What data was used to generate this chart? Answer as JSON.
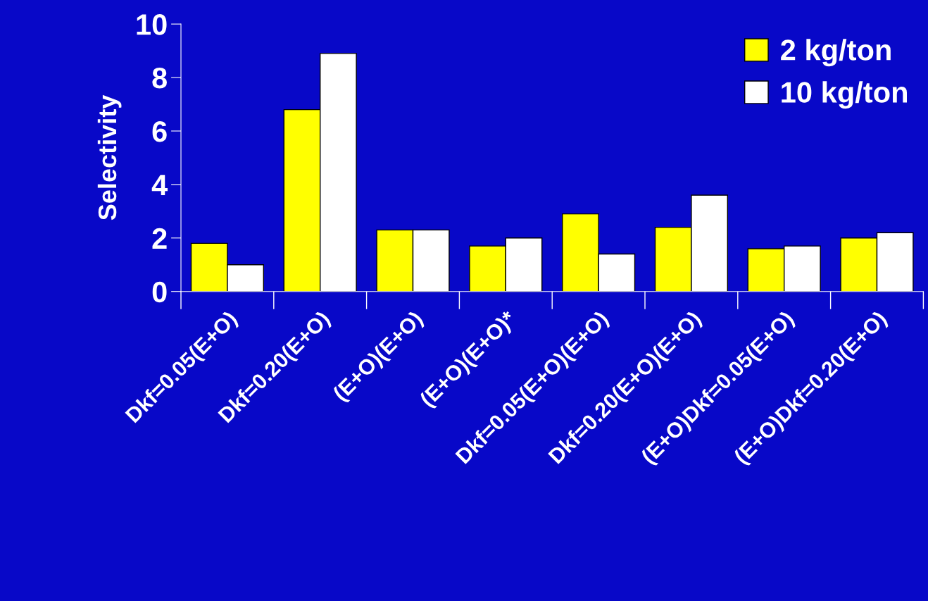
{
  "chart_data": {
    "type": "bar",
    "ylabel": "Selectivity",
    "categories": [
      "Dkf=0.05(E+O)",
      "Dkf=0.20(E+O)",
      "(E+O)(E+O)",
      "(E+O)(E+O)*",
      "Dkf=0.05(E+O)(E+O)",
      "Dkf=0.20(E+O)(E+O)",
      "(E+O)Dkf=0.05(E+O)",
      "(E+O)Dkf=0.20(E+O)"
    ],
    "series": [
      {
        "name": "2 kg/ton",
        "color": "#ffff00",
        "values": [
          1.8,
          6.8,
          2.3,
          1.7,
          2.9,
          2.4,
          1.6,
          2.0
        ]
      },
      {
        "name": "10 kg/ton",
        "color": "#ffffff",
        "values": [
          1.0,
          8.9,
          2.3,
          2.0,
          1.4,
          3.6,
          1.7,
          2.2
        ]
      }
    ],
    "ylim": [
      0,
      10
    ],
    "yticks": [
      0,
      2,
      4,
      6,
      8,
      10
    ],
    "grid": false,
    "legend": "top right"
  }
}
